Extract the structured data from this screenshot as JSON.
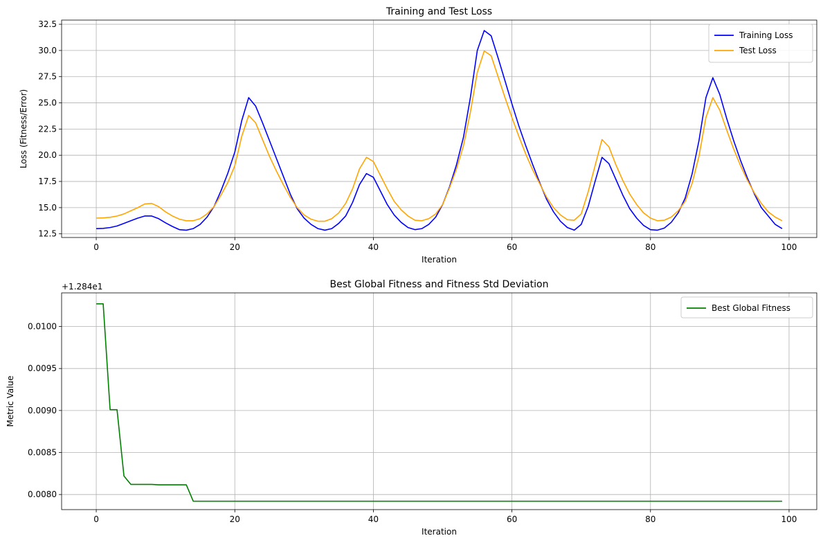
{
  "chart_data": [
    {
      "type": "line",
      "title": "Training and Test Loss",
      "xlabel": "Iteration",
      "ylabel": "Loss (Fitness/Error)",
      "xlim": [
        -5,
        104
      ],
      "ylim": [
        12.15,
        32.9
      ],
      "xticks": [
        0,
        20,
        40,
        60,
        80,
        100
      ],
      "yticks": [
        12.5,
        15.0,
        17.5,
        20.0,
        22.5,
        25.0,
        27.5,
        30.0,
        32.5
      ],
      "ytick_labels": [
        "12.5",
        "15.0",
        "17.5",
        "20.0",
        "22.5",
        "25.0",
        "27.5",
        "30.0",
        "32.5"
      ],
      "grid": true,
      "legend_position": "top-right",
      "x": [
        0,
        1,
        2,
        3,
        4,
        5,
        6,
        7,
        8,
        9,
        10,
        11,
        12,
        13,
        14,
        15,
        16,
        17,
        18,
        19,
        20,
        21,
        22,
        23,
        24,
        25,
        26,
        27,
        28,
        29,
        30,
        31,
        32,
        33,
        34,
        35,
        36,
        37,
        38,
        39,
        40,
        41,
        42,
        43,
        44,
        45,
        46,
        47,
        48,
        49,
        50,
        51,
        52,
        53,
        54,
        55,
        56,
        57,
        58,
        59,
        60,
        61,
        62,
        63,
        64,
        65,
        66,
        67,
        68,
        69,
        70,
        71,
        72,
        73,
        74,
        75,
        76,
        77,
        78,
        79,
        80,
        81,
        82,
        83,
        84,
        85,
        86,
        87,
        88,
        89,
        90,
        91,
        92,
        93,
        94,
        95,
        96,
        97,
        98,
        99
      ],
      "series": [
        {
          "name": "Training Loss",
          "color": "#0000ff",
          "values": [
            13.0,
            13.02,
            13.1,
            13.25,
            13.5,
            13.75,
            14.0,
            14.2,
            14.2,
            13.95,
            13.55,
            13.2,
            12.9,
            12.85,
            13.0,
            13.4,
            14.1,
            15.1,
            16.6,
            18.3,
            20.3,
            23.3,
            25.5,
            24.7,
            23.1,
            21.4,
            19.7,
            18.0,
            16.3,
            14.9,
            14.0,
            13.4,
            13.0,
            12.85,
            13.0,
            13.5,
            14.2,
            15.5,
            17.2,
            18.25,
            17.9,
            16.6,
            15.3,
            14.3,
            13.6,
            13.1,
            12.9,
            13.0,
            13.4,
            14.1,
            15.3,
            17.0,
            19.1,
            21.7,
            25.5,
            30.0,
            31.9,
            31.4,
            29.3,
            27.1,
            24.9,
            22.8,
            20.9,
            19.1,
            17.4,
            15.8,
            14.6,
            13.7,
            13.1,
            12.85,
            13.4,
            15.1,
            17.5,
            19.8,
            19.2,
            17.7,
            16.2,
            14.9,
            14.0,
            13.3,
            12.9,
            12.85,
            13.05,
            13.6,
            14.5,
            15.9,
            18.2,
            21.4,
            25.5,
            27.4,
            25.8,
            23.5,
            21.4,
            19.5,
            17.8,
            16.3,
            15.0,
            14.2,
            13.4,
            13.0
          ]
        },
        {
          "name": "Test Loss",
          "color": "#ffa500",
          "values": [
            14.0,
            14.02,
            14.08,
            14.2,
            14.4,
            14.7,
            15.0,
            15.35,
            15.4,
            15.1,
            14.6,
            14.2,
            13.9,
            13.75,
            13.75,
            13.95,
            14.4,
            15.1,
            16.2,
            17.4,
            19.0,
            21.8,
            23.8,
            23.1,
            21.5,
            19.9,
            18.5,
            17.2,
            16.0,
            15.0,
            14.3,
            13.9,
            13.7,
            13.7,
            13.95,
            14.5,
            15.4,
            16.8,
            18.7,
            19.8,
            19.4,
            18.1,
            16.8,
            15.6,
            14.8,
            14.2,
            13.8,
            13.75,
            13.95,
            14.4,
            15.3,
            16.9,
            18.7,
            20.9,
            24.1,
            27.9,
            29.95,
            29.5,
            27.5,
            25.5,
            23.6,
            21.8,
            20.1,
            18.6,
            17.3,
            16.0,
            15.0,
            14.3,
            13.85,
            13.8,
            14.4,
            16.5,
            19.0,
            21.5,
            20.8,
            19.1,
            17.6,
            16.3,
            15.3,
            14.5,
            14.0,
            13.75,
            13.8,
            14.1,
            14.7,
            15.6,
            17.3,
            19.9,
            23.6,
            25.5,
            24.3,
            22.4,
            20.6,
            19.0,
            17.6,
            16.4,
            15.4,
            14.6,
            14.1,
            13.75
          ]
        }
      ]
    },
    {
      "type": "line",
      "title": "Best Global Fitness and Fitness Std Deviation",
      "xlabel": "Iteration",
      "ylabel": "Metric Value",
      "offset_text": "+1.284e1",
      "xlim": [
        -5,
        104
      ],
      "ylim": [
        0.00782,
        0.0104
      ],
      "xticks": [
        0,
        20,
        40,
        60,
        80,
        100
      ],
      "yticks": [
        0.008,
        0.0085,
        0.009,
        0.0095,
        0.01
      ],
      "ytick_labels": [
        "0.0080",
        "0.0085",
        "0.0090",
        "0.0095",
        "0.0100"
      ],
      "grid": true,
      "legend_position": "top-right",
      "x": [
        0,
        1,
        2,
        3,
        4,
        5,
        6,
        7,
        8,
        9,
        10,
        11,
        12,
        13,
        14,
        15,
        16,
        17,
        18,
        19,
        20,
        21,
        22,
        23,
        24,
        25,
        26,
        27,
        28,
        29,
        30,
        31,
        32,
        33,
        34,
        35,
        36,
        37,
        38,
        39,
        40,
        41,
        42,
        43,
        44,
        45,
        46,
        47,
        48,
        49,
        50,
        51,
        52,
        53,
        54,
        55,
        56,
        57,
        58,
        59,
        60,
        61,
        62,
        63,
        64,
        65,
        66,
        67,
        68,
        69,
        70,
        71,
        72,
        73,
        74,
        75,
        76,
        77,
        78,
        79,
        80,
        81,
        82,
        83,
        84,
        85,
        86,
        87,
        88,
        89,
        90,
        91,
        92,
        93,
        94,
        95,
        96,
        97,
        98,
        99
      ],
      "series": [
        {
          "name": "Best Global Fitness",
          "color": "#008000",
          "values": [
            0.01027,
            0.01027,
            0.00901,
            0.00901,
            0.00822,
            0.00812,
            0.00812,
            0.00812,
            0.00812,
            0.008115,
            0.008115,
            0.008115,
            0.008115,
            0.008115,
            0.00792,
            0.00792,
            0.00792,
            0.00792,
            0.00792,
            0.00792,
            0.00792,
            0.00792,
            0.00792,
            0.00792,
            0.00792,
            0.00792,
            0.00792,
            0.00792,
            0.00792,
            0.00792,
            0.00792,
            0.00792,
            0.00792,
            0.00792,
            0.00792,
            0.00792,
            0.00792,
            0.00792,
            0.00792,
            0.00792,
            0.00792,
            0.00792,
            0.00792,
            0.00792,
            0.00792,
            0.00792,
            0.00792,
            0.00792,
            0.00792,
            0.00792,
            0.00792,
            0.00792,
            0.00792,
            0.00792,
            0.00792,
            0.00792,
            0.00792,
            0.00792,
            0.00792,
            0.00792,
            0.00792,
            0.00792,
            0.00792,
            0.00792,
            0.00792,
            0.00792,
            0.00792,
            0.00792,
            0.00792,
            0.00792,
            0.00792,
            0.00792,
            0.00792,
            0.00792,
            0.00792,
            0.00792,
            0.00792,
            0.00792,
            0.00792,
            0.00792,
            0.00792,
            0.00792,
            0.00792,
            0.00792,
            0.00792,
            0.00792,
            0.00792,
            0.00792,
            0.00792,
            0.00792,
            0.00792,
            0.00792,
            0.00792,
            0.00792,
            0.00792,
            0.00792,
            0.00792,
            0.00792,
            0.00792,
            0.00792
          ]
        }
      ]
    }
  ]
}
